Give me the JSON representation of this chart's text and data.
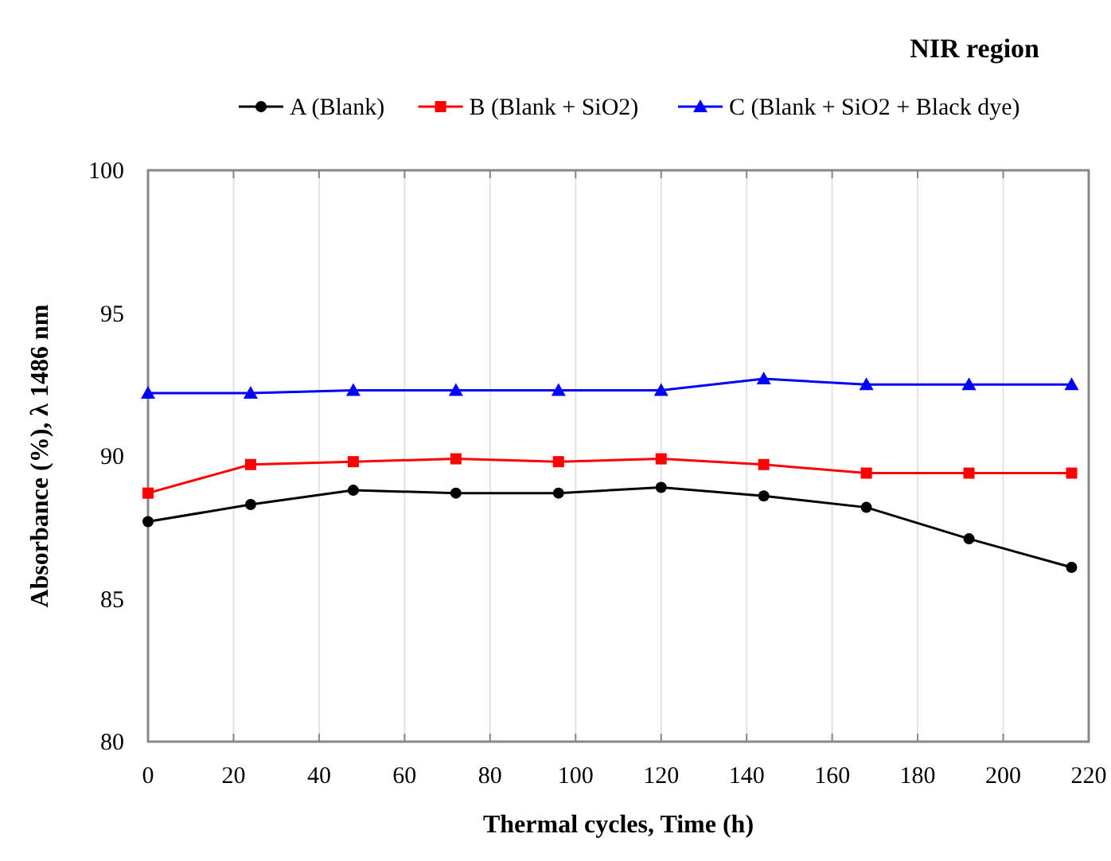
{
  "chart_data": {
    "type": "line",
    "xlabel": "Thermal cycles, Time (h)",
    "ylabel": "Absorbance (%), λ 1486 nm",
    "annotations": [
      "NIR region"
    ],
    "x": [
      0,
      24,
      48,
      72,
      96,
      120,
      144,
      168,
      192,
      216
    ],
    "series": [
      {
        "name": "A (Blank)",
        "color": "#000000",
        "marker": "circle",
        "values": [
          87.7,
          88.3,
          88.8,
          88.7,
          88.7,
          88.9,
          88.6,
          88.2,
          87.1,
          86.1
        ]
      },
      {
        "name": "B (Blank + SiO2)",
        "color": "#ff0000",
        "marker": "square",
        "values": [
          88.7,
          89.7,
          89.8,
          89.9,
          89.8,
          89.9,
          89.7,
          89.4,
          89.4,
          89.4
        ]
      },
      {
        "name": "C (Blank + SiO2 + Black dye)",
        "color": "#0000ff",
        "marker": "triangle",
        "values": [
          92.2,
          92.2,
          92.3,
          92.3,
          92.3,
          92.3,
          92.7,
          92.5,
          92.5,
          92.5
        ]
      }
    ],
    "xlim": [
      0,
      220
    ],
    "xticks": [
      0,
      20,
      40,
      60,
      80,
      100,
      120,
      140,
      160,
      180,
      200,
      220
    ],
    "ylim": [
      80,
      100
    ],
    "yticks": [
      80,
      85,
      90,
      95,
      100
    ],
    "grid": "x",
    "legend": "top",
    "line_style": "solid"
  }
}
